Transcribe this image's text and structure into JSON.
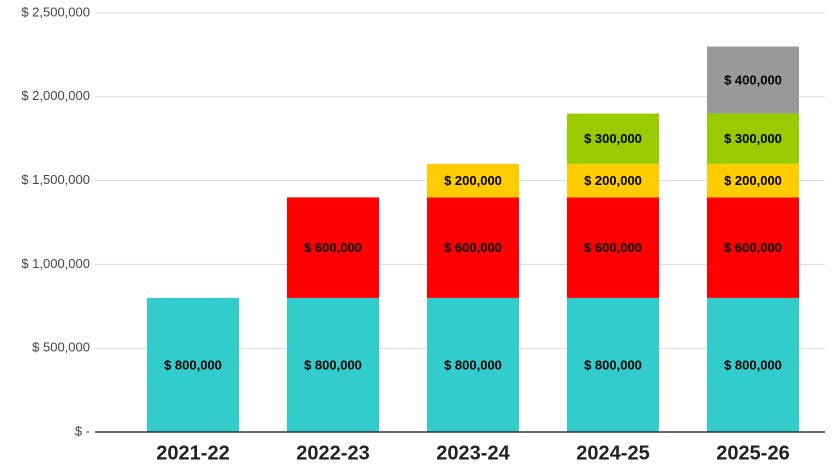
{
  "chart_data": {
    "type": "stacked_bar",
    "categories": [
      "2021-22",
      "2022-23",
      "2023-24",
      "2024-25",
      "2025-26"
    ],
    "series": [
      {
        "color": "#33cccc",
        "values": [
          800000,
          800000,
          800000,
          800000,
          800000
        ],
        "value_labels": [
          "$ 800,000",
          "$ 800,000",
          "$ 800,000",
          "$ 800,000",
          "$ 800,000"
        ]
      },
      {
        "color": "#ff0000",
        "values": [
          null,
          600000,
          600000,
          600000,
          600000
        ],
        "value_labels": [
          null,
          "$ 600,000",
          "$ 600,000",
          "$ 600,000",
          "$ 600,000"
        ]
      },
      {
        "color": "#ffcc00",
        "values": [
          null,
          null,
          200000,
          200000,
          200000
        ],
        "value_labels": [
          null,
          null,
          "$ 200,000",
          "$ 200,000",
          "$ 200,000"
        ]
      },
      {
        "color": "#99cc00",
        "values": [
          null,
          null,
          null,
          300000,
          300000
        ],
        "value_labels": [
          null,
          null,
          null,
          "$ 300,000",
          "$ 300,000"
        ]
      },
      {
        "color": "#999999",
        "values": [
          null,
          null,
          null,
          null,
          400000
        ],
        "value_labels": [
          null,
          null,
          null,
          null,
          "$ 400,000"
        ]
      }
    ],
    "ylim": [
      0,
      2500000
    ],
    "yticks": [
      {
        "value": 0,
        "label": "$ -"
      },
      {
        "value": 500000,
        "label": "$ 500,000"
      },
      {
        "value": 1000000,
        "label": "$ 1,000,000"
      },
      {
        "value": 1500000,
        "label": "$ 1,500,000"
      },
      {
        "value": 2000000,
        "label": "$ 2,000,000"
      },
      {
        "value": 2500000,
        "label": "$ 2,500,000"
      }
    ],
    "grid": true
  }
}
